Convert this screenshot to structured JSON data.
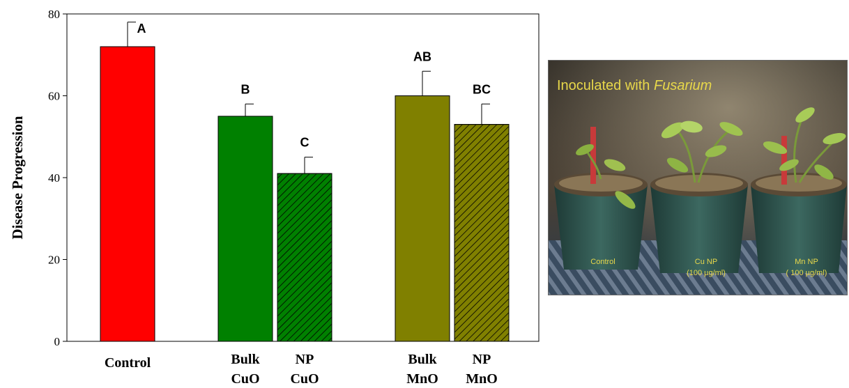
{
  "chart_data": {
    "type": "bar",
    "ylabel": "Disease Progression",
    "ylim": [
      0,
      80
    ],
    "yticks": [
      0,
      20,
      40,
      60,
      80
    ],
    "grid": false,
    "bars": [
      {
        "label": [
          "Control"
        ],
        "value": 72,
        "error": 6,
        "group": "A",
        "color": "#ff0000",
        "pattern": "solid"
      },
      {
        "label": [
          "Bulk",
          "CuO"
        ],
        "value": 55,
        "error": 3,
        "group": "B",
        "color": "#008000",
        "pattern": "solid"
      },
      {
        "label": [
          "NP",
          "CuO"
        ],
        "value": 41,
        "error": 4,
        "group": "C",
        "color": "#008000",
        "pattern": "hatched"
      },
      {
        "label": [
          "Bulk",
          "MnO"
        ],
        "value": 60,
        "error": 6,
        "group": "AB",
        "color": "#808000",
        "pattern": "solid"
      },
      {
        "label": [
          "NP",
          "MnO"
        ],
        "value": 53,
        "error": 5,
        "group": "BC",
        "color": "#808000",
        "pattern": "hatched"
      }
    ]
  },
  "photo": {
    "title_prefix": "Inoculated with ",
    "title_italic": "Fusarium",
    "captions": [
      {
        "line1": "Control",
        "line2": ""
      },
      {
        "line1": "Cu NP",
        "line2": "(100 µg/ml)"
      },
      {
        "line1": "Mn NP",
        "line2": "( 100 µg/ml)"
      }
    ]
  }
}
